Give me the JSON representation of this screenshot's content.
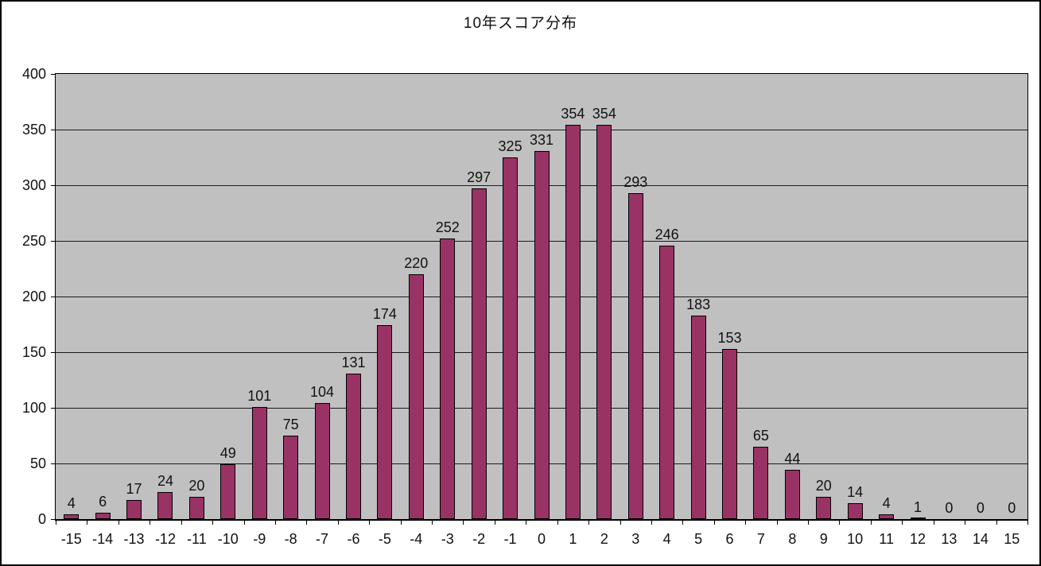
{
  "window": {
    "background": "#ffffff",
    "frame_border": "#000000"
  },
  "colors": {
    "bar_fill": "#993366",
    "bar_border": "#000000",
    "plot_background": "#c0c0c0",
    "gridline": "#1a1a1a",
    "axis_line": "#000000",
    "label_text": "#111111"
  },
  "chart_data": {
    "type": "bar",
    "title": "10年スコア分布",
    "categories": [
      -15,
      -14,
      -13,
      -12,
      -11,
      -10,
      -9,
      -8,
      -7,
      -6,
      -5,
      -4,
      -3,
      -2,
      -1,
      0,
      1,
      2,
      3,
      4,
      5,
      6,
      7,
      8,
      9,
      10,
      11,
      12,
      13,
      14,
      15
    ],
    "values": [
      4,
      6,
      17,
      24,
      20,
      49,
      101,
      75,
      104,
      131,
      174,
      220,
      252,
      297,
      325,
      331,
      354,
      354,
      293,
      246,
      183,
      153,
      65,
      44,
      20,
      14,
      4,
      1,
      0,
      0,
      0
    ],
    "xlabel": "",
    "ylabel": "",
    "ylim": [
      0,
      400
    ],
    "yticks": [
      0,
      50,
      100,
      150,
      200,
      250,
      300,
      350,
      400
    ],
    "grid": "horizontal",
    "legend": "none",
    "data_labels": true,
    "bar_color": "#993366",
    "plot_bg": "#c0c0c0"
  }
}
